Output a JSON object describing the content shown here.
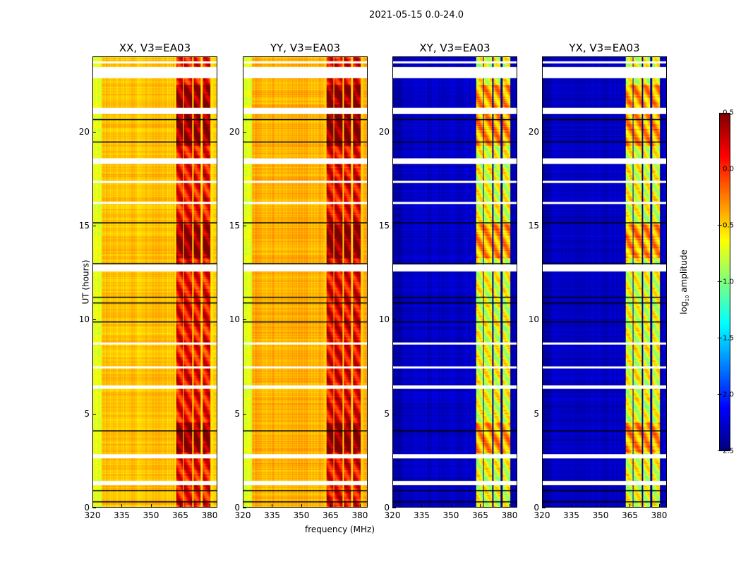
{
  "suptitle": "2021-05-15 0.0-24.0",
  "chart_data": {
    "type": "heatmap",
    "xlabel": "frequency (MHz)",
    "ylabel": "UT (hours)",
    "xlim": [
      320,
      384
    ],
    "ylim": [
      0,
      24
    ],
    "xticks": [
      "320",
      "335",
      "350",
      "365",
      "380"
    ],
    "xtick_values": [
      320,
      335,
      350,
      365,
      380
    ],
    "yticks": [
      "0",
      "5",
      "10",
      "15",
      "20"
    ],
    "ytick_values": [
      0,
      5,
      10,
      15,
      20
    ],
    "colormap": "jet",
    "colorbar": {
      "label": "log10 amplitude",
      "label_main": "log",
      "label_sub": "10",
      "label_rest": " amplitude",
      "range": [
        -2.5,
        0.5
      ],
      "ticks": [
        "0.5",
        "0.0",
        "−0.5",
        "−1.0",
        "−1.5",
        "−2.0",
        "−2.5"
      ],
      "tick_values": [
        0.5,
        0,
        -0.5,
        -1,
        -1.5,
        -2,
        -2.5
      ]
    },
    "panels": [
      {
        "title": "XX, V3=EA03",
        "background_level": -0.45,
        "edge_level": -0.7,
        "band_level": 0.1
      },
      {
        "title": "YY, V3=EA03",
        "background_level": -0.4,
        "edge_level": -0.7,
        "band_level": 0.15
      },
      {
        "title": "XY, V3=EA03",
        "background_level": -2.3,
        "edge_level": -2.4,
        "band_level": -0.7
      },
      {
        "title": "YX, V3=EA03",
        "background_level": -2.3,
        "edge_level": -2.4,
        "band_level": -0.7
      }
    ],
    "band_segments_MHz": [
      [
        363,
        366.5
      ],
      [
        367,
        371
      ],
      [
        372,
        375.5
      ],
      [
        376.5,
        380.5
      ]
    ],
    "high_rfi_hours": [
      [
        2.9,
        4.5
      ],
      [
        13.3,
        15.1
      ],
      [
        19.3,
        22.5
      ]
    ],
    "flagged_hours": [
      [
        1.2,
        1.4
      ],
      [
        2.6,
        2.85
      ],
      [
        6.3,
        6.5
      ],
      [
        7.4,
        7.5
      ],
      [
        8.7,
        8.8
      ],
      [
        12.6,
        12.95
      ],
      [
        16.2,
        16.3
      ],
      [
        17.3,
        17.4
      ],
      [
        18.3,
        18.6
      ],
      [
        21.0,
        21.3
      ],
      [
        22.9,
        23.5
      ],
      [
        23.7,
        23.8
      ]
    ],
    "flag_lines_hours": [
      [
        0.3
      ],
      [
        0.9
      ],
      [
        4.1
      ],
      [
        9.9
      ],
      [
        10.9
      ],
      [
        11.2
      ],
      [
        13.0
      ],
      [
        15.2
      ],
      [
        19.5
      ],
      [
        20.7
      ]
    ]
  }
}
